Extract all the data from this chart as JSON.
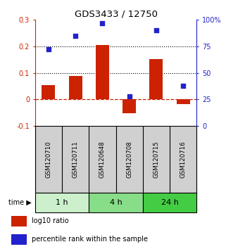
{
  "title": "GDS3433 / 12750",
  "samples": [
    "GSM120710",
    "GSM120711",
    "GSM120648",
    "GSM120708",
    "GSM120715",
    "GSM120716"
  ],
  "log10_ratio": [
    0.053,
    0.088,
    0.205,
    -0.052,
    0.152,
    -0.018
  ],
  "percentile_rank": [
    72,
    85,
    97,
    28,
    90,
    38
  ],
  "ylim_left": [
    -0.1,
    0.3
  ],
  "ylim_right": [
    0,
    100
  ],
  "bar_color": "#cc2200",
  "dot_color": "#2222cc",
  "dotted_line_vals": [
    0.2,
    0.1
  ],
  "dashed_line_val": 0.0,
  "time_groups": [
    {
      "label": "1 h",
      "start": 0,
      "end": 2,
      "color": "#ccf0cc"
    },
    {
      "label": "4 h",
      "start": 2,
      "end": 4,
      "color": "#88dd88"
    },
    {
      "label": "24 h",
      "start": 4,
      "end": 6,
      "color": "#44cc44"
    }
  ],
  "legend_red_label": "log10 ratio",
  "legend_blue_label": "percentile rank within the sample",
  "background_color": "#ffffff",
  "label_bg_color": "#d0d0d0"
}
